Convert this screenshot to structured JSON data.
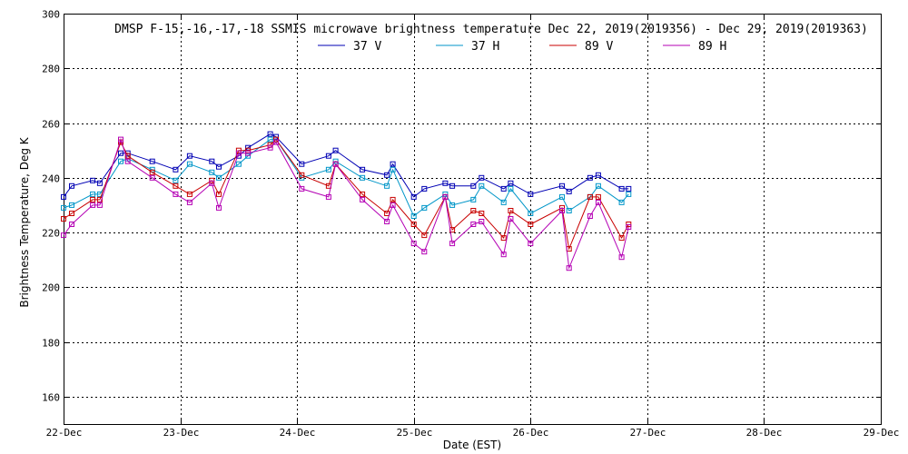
{
  "chart_data": {
    "type": "line",
    "title": "DMSP F-15,-16,-17,-18 SSMIS microwave brightness temperature Dec 22, 2019(2019356) - Dec 29, 2019(2019363)",
    "xlabel": "Date (EST)",
    "ylabel": "Brightness Temperature, Deg K",
    "xlim": [
      0,
      7
    ],
    "ylim": [
      150,
      300
    ],
    "xticks": [
      {
        "pos": 0,
        "label": "22-Dec"
      },
      {
        "pos": 1,
        "label": "23-Dec"
      },
      {
        "pos": 2,
        "label": "24-Dec"
      },
      {
        "pos": 3,
        "label": "25-Dec"
      },
      {
        "pos": 4,
        "label": "26-Dec"
      },
      {
        "pos": 5,
        "label": "27-Dec"
      },
      {
        "pos": 6,
        "label": "28-Dec"
      },
      {
        "pos": 7,
        "label": "29-Dec"
      }
    ],
    "yticks": [
      160,
      180,
      200,
      220,
      240,
      260,
      280,
      300
    ],
    "grid": true,
    "legend_position": "top-center",
    "x": [
      0.0,
      0.07,
      0.25,
      0.31,
      0.49,
      0.55,
      0.76,
      0.96,
      1.08,
      1.27,
      1.33,
      1.5,
      1.58,
      1.77,
      1.82,
      2.04,
      2.27,
      2.33,
      2.56,
      2.77,
      2.82,
      3.0,
      3.09,
      3.27,
      3.33,
      3.51,
      3.58,
      3.77,
      3.83,
      4.0,
      4.27,
      4.33,
      4.51,
      4.58,
      4.78,
      4.84
    ],
    "series": [
      {
        "name": "37 V",
        "color": "#0000b4",
        "values": [
          233,
          237,
          239,
          238,
          249,
          249,
          246,
          243,
          248,
          246,
          244,
          248,
          251,
          256,
          255,
          245,
          248,
          250,
          243,
          241,
          245,
          233,
          236,
          238,
          237,
          237,
          240,
          236,
          238,
          234,
          237,
          235,
          240,
          241,
          236,
          236
        ]
      },
      {
        "name": "37 H",
        "color": "#0096c8",
        "values": [
          229,
          230,
          234,
          234,
          246,
          247,
          243,
          239,
          245,
          242,
          240,
          245,
          248,
          254,
          254,
          240,
          243,
          246,
          240,
          237,
          243,
          226,
          229,
          234,
          230,
          232,
          237,
          231,
          236,
          227,
          233,
          228,
          233,
          237,
          231,
          234
        ]
      },
      {
        "name": "89 V",
        "color": "#c80000",
        "values": [
          225,
          227,
          232,
          232,
          253,
          248,
          242,
          237,
          234,
          239,
          234,
          250,
          250,
          252,
          254,
          241,
          237,
          245,
          234,
          227,
          232,
          223,
          219,
          233,
          221,
          228,
          227,
          218,
          228,
          223,
          229,
          214,
          233,
          233,
          218,
          223
        ]
      },
      {
        "name": "89 H",
        "color": "#b400b4",
        "values": [
          219,
          223,
          230,
          230,
          254,
          246,
          240,
          234,
          231,
          238,
          229,
          249,
          249,
          251,
          253,
          236,
          233,
          245,
          232,
          224,
          230,
          216,
          213,
          233,
          216,
          223,
          224,
          212,
          225,
          216,
          228,
          207,
          226,
          231,
          211,
          222
        ]
      }
    ]
  }
}
